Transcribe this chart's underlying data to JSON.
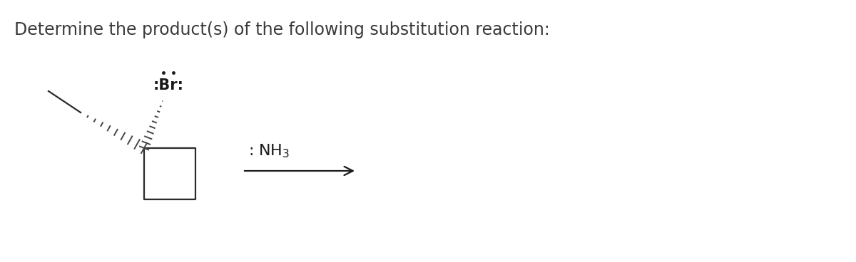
{
  "title": "Determine the product(s) of the following substitution reaction:",
  "title_fontsize": 17,
  "title_color": "#3a3a3a",
  "bg_color": "#ffffff",
  "ring_color": "#2a2a2a",
  "ring_lw": 1.6,
  "hash_color": "#444444",
  "hash_lw": 1.4,
  "br_fontsize": 15,
  "nh3_fontsize": 16,
  "arrow_color": "#1a1a1a",
  "arrow_lw": 1.6
}
